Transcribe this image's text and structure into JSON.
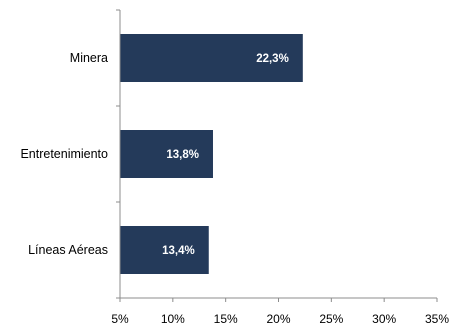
{
  "chart_data": {
    "type": "bar",
    "orientation": "horizontal",
    "categories": [
      "Minera",
      "Entretenimiento",
      "Líneas Aéreas"
    ],
    "values": [
      22.3,
      13.8,
      13.4
    ],
    "data_labels": [
      "22,3%",
      "13,8%",
      "13,4%"
    ],
    "xlim": [
      5,
      35
    ],
    "x_ticks": [
      5,
      10,
      15,
      20,
      25,
      30,
      35
    ],
    "x_tick_labels": [
      "5%",
      "10%",
      "15%",
      "20%",
      "25%",
      "30%",
      "35%"
    ],
    "title": "",
    "xlabel": "",
    "ylabel": "",
    "grid": false,
    "legend": "none",
    "bar_color": "#243a5a"
  }
}
